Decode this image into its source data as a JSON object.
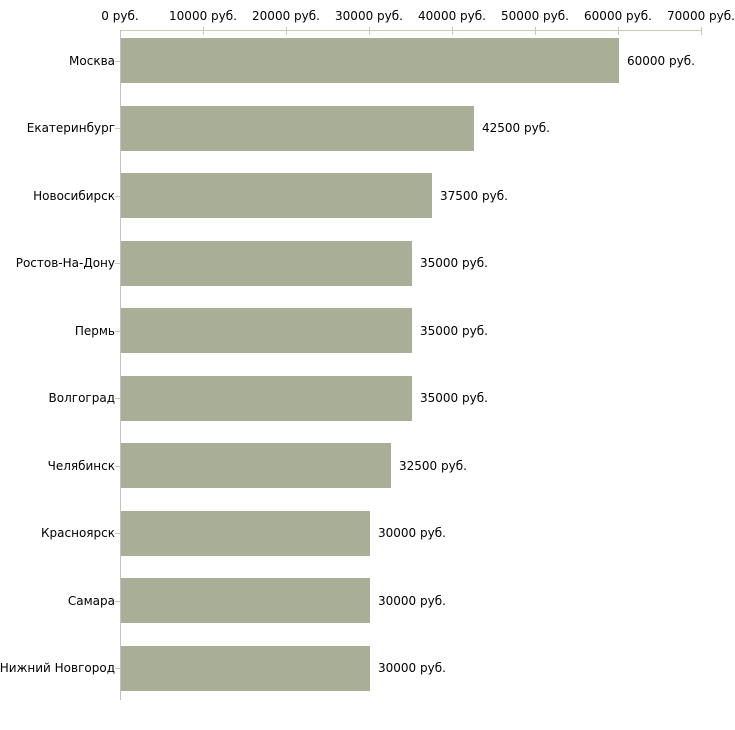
{
  "chart_data": {
    "type": "bar",
    "orientation": "horizontal",
    "title": "",
    "xlabel": "",
    "ylabel": "",
    "categories": [
      "Москва",
      "Екатеринбург",
      "Новосибирск",
      "Ростов-На-Дону",
      "Пермь",
      "Волгоград",
      "Челябинск",
      "Красноярск",
      "Самара",
      "Нижний Новгород"
    ],
    "values": [
      60000,
      42500,
      37500,
      35000,
      35000,
      35000,
      32500,
      30000,
      30000,
      30000
    ],
    "value_labels": [
      "60000 руб.",
      "42500 руб.",
      "37500 руб.",
      "35000 руб.",
      "35000 руб.",
      "35000 руб.",
      "32500 руб.",
      "30000 руб.",
      "30000 руб.",
      "30000 руб."
    ],
    "x_axis": {
      "position": "top",
      "min": 0,
      "max": 70000,
      "tick_step": 10000,
      "tick_labels": [
        "0 руб.",
        "10000 руб.",
        "20000 руб.",
        "30000 руб.",
        "40000 руб.",
        "50000 руб.",
        "60000 руб.",
        "70000 руб."
      ]
    },
    "grid": "off",
    "legend": "none",
    "colors": {
      "bar_fill": "#a9ae97",
      "axis_line": "#cbcbb2",
      "tick_mark": "#c9c9ad",
      "baseline": "#c1c1c1",
      "text": "#000000",
      "background": "#ffffff"
    }
  }
}
